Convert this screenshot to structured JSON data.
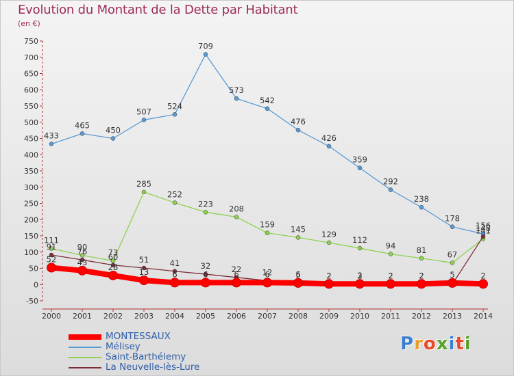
{
  "title": "Evolution du Montant de la Dette par Habitant",
  "unit": "(en €)",
  "logo": {
    "text": "Proxiti",
    "colors": [
      "#3a7fd0",
      "#e8a02a",
      "#e84a2a",
      "#5aa02a",
      "#3a7fd0",
      "#e84a2a",
      "#5aa02a"
    ]
  },
  "chart_data": {
    "type": "line",
    "x": [
      "2000",
      "2001",
      "2002",
      "2003",
      "2004",
      "2005",
      "2006",
      "2007",
      "2008",
      "2009",
      "2010",
      "2011",
      "2012",
      "2013",
      "2014"
    ],
    "ylim": [
      -50,
      750
    ],
    "yticks": [
      "-50",
      "0",
      "50",
      "100",
      "150",
      "200",
      "250",
      "300",
      "350",
      "400",
      "450",
      "500",
      "550",
      "600",
      "650",
      "700",
      "750"
    ],
    "grid": false,
    "legend": "bottom",
    "series": [
      {
        "name": "MONTESSAUX",
        "color": "#ff0000",
        "width": 8,
        "values": [
          52,
          43,
          28,
          13,
          6,
          6,
          6,
          6,
          5,
          2,
          2,
          2,
          2,
          5,
          2
        ],
        "labels": [
          "52",
          "43",
          "28",
          "13",
          "6",
          "6",
          "6",
          "6",
          "5",
          "2",
          "2",
          "2",
          "2",
          "5",
          "2"
        ]
      },
      {
        "name": "Mélisey",
        "color": "#5b9bd5",
        "width": 1.3,
        "values": [
          433,
          465,
          450,
          507,
          524,
          709,
          573,
          542,
          476,
          426,
          359,
          292,
          238,
          178,
          156
        ],
        "labels": [
          "433",
          "465",
          "450",
          "507",
          "524",
          "709",
          "573",
          "542",
          "476",
          "426",
          "359",
          "292",
          "238",
          "178",
          "156"
        ]
      },
      {
        "name": "Saint-Barthélemy",
        "color": "#8fd14f",
        "width": 1.3,
        "values": [
          111,
          90,
          73,
          285,
          252,
          223,
          208,
          159,
          145,
          129,
          112,
          94,
          81,
          67,
          141
        ],
        "labels": [
          "111",
          "90",
          "73",
          "285",
          "252",
          "223",
          "208",
          "159",
          "145",
          "129",
          "112",
          "94",
          "81",
          "67",
          "141"
        ]
      },
      {
        "name": "La Neuvelle-lès-Lure",
        "color": "#7b2e3a",
        "width": 1.3,
        "values": [
          91,
          76,
          60,
          51,
          41,
          32,
          22,
          12,
          6,
          2,
          3,
          2,
          2,
          1,
          148
        ],
        "labels": [
          "91",
          "76",
          "60",
          "51",
          "41",
          "32",
          "22",
          "12",
          "6",
          "2",
          "3",
          "2",
          "2",
          "",
          "148"
        ]
      }
    ]
  }
}
